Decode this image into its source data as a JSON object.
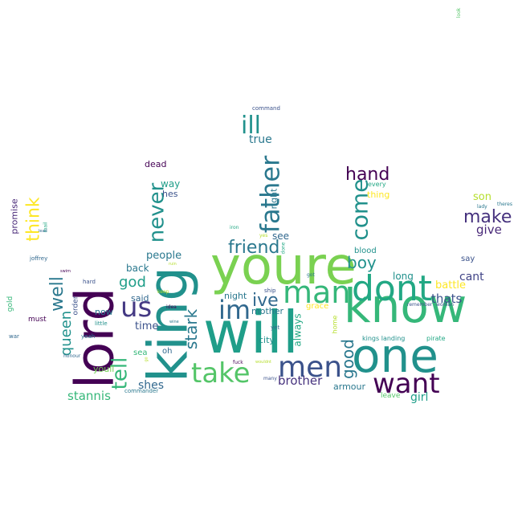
{
  "words": [
    {
      "text": "will",
      "color": "#1f9e89"
    },
    {
      "text": "youre",
      "color": "#7ad151"
    },
    {
      "text": "know",
      "color": "#35b779"
    },
    {
      "text": "king",
      "color": "#21918c"
    },
    {
      "text": "lord",
      "color": "#440154"
    },
    {
      "text": "one",
      "color": "#21918c"
    },
    {
      "text": "dont",
      "color": "#22a884"
    },
    {
      "text": "man",
      "color": "#35b779"
    },
    {
      "text": "want",
      "color": "#440154"
    },
    {
      "text": "take",
      "color": "#54c568"
    },
    {
      "text": "men",
      "color": "#3b528b"
    },
    {
      "text": "im",
      "color": "#31688e"
    },
    {
      "text": "us",
      "color": "#443983"
    },
    {
      "text": "father",
      "color": "#2a788e"
    },
    {
      "text": "come",
      "color": "#21918c"
    },
    {
      "text": "never",
      "color": "#21918c"
    },
    {
      "text": "ill",
      "color": "#21918c"
    },
    {
      "text": "friend",
      "color": "#2a788e"
    },
    {
      "text": "hand",
      "color": "#440154"
    },
    {
      "text": "make",
      "color": "#46327e"
    },
    {
      "text": "tell",
      "color": "#35b779"
    },
    {
      "text": "think",
      "color": "#fde725"
    },
    {
      "text": "well",
      "color": "#2a788e"
    },
    {
      "text": "ive",
      "color": "#31688e"
    },
    {
      "text": "boy",
      "color": "#21918c"
    },
    {
      "text": "good",
      "color": "#2a788e"
    },
    {
      "text": "queen",
      "color": "#21918c"
    },
    {
      "text": "stark",
      "color": "#2a788e"
    },
    {
      "text": "god",
      "color": "#1f9e89"
    },
    {
      "text": "brother",
      "color": "#46327e"
    },
    {
      "text": "stannis",
      "color": "#35b779"
    },
    {
      "text": "thats",
      "color": "#3b528b"
    },
    {
      "text": "give",
      "color": "#482878"
    },
    {
      "text": "cant",
      "color": "#414487"
    },
    {
      "text": "girl",
      "color": "#1f9e89"
    },
    {
      "text": "true",
      "color": "#2a788e"
    },
    {
      "text": "people",
      "color": "#2a788e"
    },
    {
      "text": "shes",
      "color": "#31688e"
    },
    {
      "text": "son",
      "color": "#b5de2b"
    },
    {
      "text": "battle",
      "color": "#fde725"
    },
    {
      "text": "time",
      "color": "#3b528b"
    },
    {
      "text": "always",
      "color": "#22a884"
    },
    {
      "text": "long",
      "color": "#21918c"
    },
    {
      "text": "back",
      "color": "#2a788e"
    },
    {
      "text": "see",
      "color": "#31688e"
    },
    {
      "text": "way",
      "color": "#1f9e89"
    },
    {
      "text": "thing",
      "color": "#fde725"
    },
    {
      "text": "promise",
      "color": "#482878"
    },
    {
      "text": "hes",
      "color": "#3b528b"
    },
    {
      "text": "right",
      "color": "#2a788e"
    },
    {
      "text": "night",
      "color": "#2a788e"
    },
    {
      "text": "mother",
      "color": "#2a788e"
    },
    {
      "text": "city",
      "color": "#21918c"
    },
    {
      "text": "youll",
      "color": "#73d056"
    },
    {
      "text": "armour",
      "color": "#2a788e"
    },
    {
      "text": "said",
      "color": "#31688e"
    },
    {
      "text": "now",
      "color": "#2a788e"
    },
    {
      "text": "dead",
      "color": "#440154"
    },
    {
      "text": "blood",
      "color": "#21918c"
    },
    {
      "text": "say",
      "color": "#3b528b"
    },
    {
      "text": "oh",
      "color": "#31688e"
    },
    {
      "text": "grace",
      "color": "#fde725"
    },
    {
      "text": "sea",
      "color": "#35b779"
    },
    {
      "text": "order",
      "color": "#3b528b"
    },
    {
      "text": "must",
      "color": "#440154"
    },
    {
      "text": "leave",
      "color": "#54c568"
    },
    {
      "text": "gold",
      "color": "#35b779"
    },
    {
      "text": "home",
      "color": "#b5de2b"
    },
    {
      "text": "every",
      "color": "#22a884"
    },
    {
      "text": "kings landing",
      "color": "#21918c"
    },
    {
      "text": "pirate",
      "color": "#22a884"
    },
    {
      "text": "command",
      "color": "#3b528b"
    },
    {
      "text": "commander",
      "color": "#2a788e"
    },
    {
      "text": "remember",
      "color": "#3b528b"
    },
    {
      "text": "woman",
      "color": "#3b528b"
    },
    {
      "text": "ship",
      "color": "#3b528b"
    },
    {
      "text": "got",
      "color": "#2a788e"
    },
    {
      "text": "yes",
      "color": "#b5de2b"
    },
    {
      "text": "idea",
      "color": "#440154"
    },
    {
      "text": "yeah",
      "color": "#2a788e"
    },
    {
      "text": "little",
      "color": "#21918c"
    },
    {
      "text": "hard",
      "color": "#3b528b"
    },
    {
      "text": "joffrey",
      "color": "#31688e"
    },
    {
      "text": "honour",
      "color": "#31688e"
    },
    {
      "text": "war",
      "color": "#31688e"
    },
    {
      "text": "mail",
      "color": "#22a884"
    },
    {
      "text": "iron",
      "color": "#22a884"
    },
    {
      "text": "done",
      "color": "#22a884"
    },
    {
      "text": "fuck",
      "color": "#440154"
    },
    {
      "text": "wouldnt",
      "color": "#b5de2b"
    },
    {
      "text": "many",
      "color": "#3b528b"
    },
    {
      "text": "yet",
      "color": "#31688e"
    },
    {
      "text": "keep",
      "color": "#b5de2b"
    },
    {
      "text": "wine",
      "color": "#2a788e"
    },
    {
      "text": "lady",
      "color": "#2a788e"
    },
    {
      "text": "theres",
      "color": "#2a788e"
    },
    {
      "text": "look",
      "color": "#54c568"
    },
    {
      "text": "ruin",
      "color": "#b5de2b"
    },
    {
      "text": "lead",
      "color": "#31688e"
    },
    {
      "text": "swim",
      "color": "#440154"
    },
    {
      "text": "go",
      "color": "#b5de2b"
    }
  ]
}
